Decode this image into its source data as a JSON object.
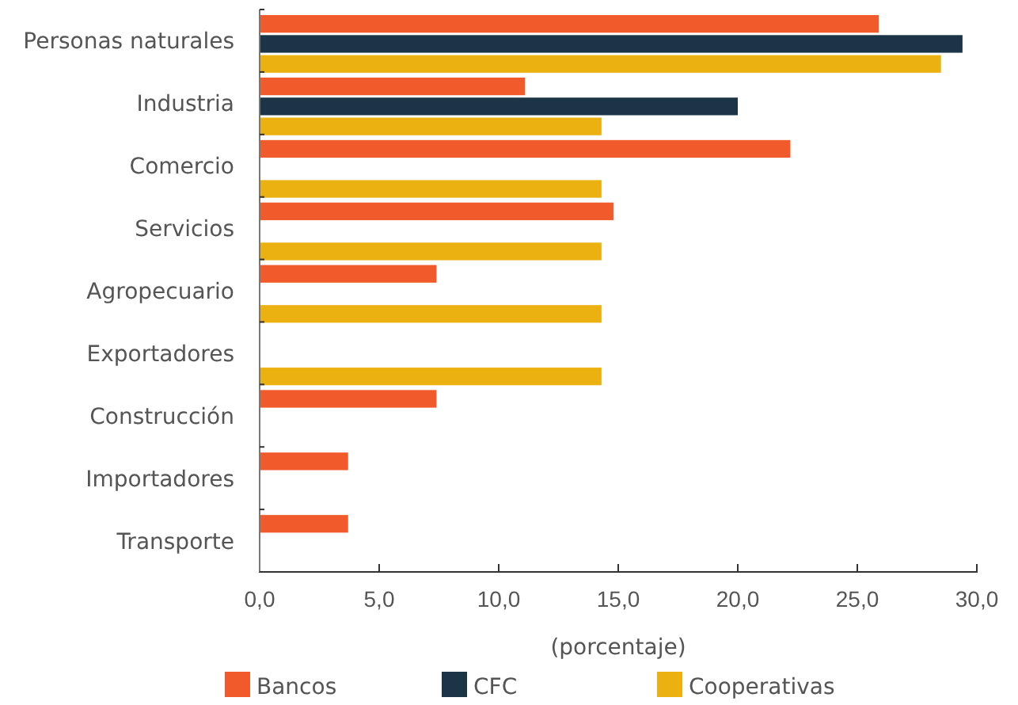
{
  "chart_data": {
    "type": "bar",
    "orientation": "horizontal",
    "xlabel": "(porcentaje)",
    "categories": [
      "Personas naturales",
      "Industria",
      "Comercio",
      "Servicios",
      "Agropecuario",
      "Exportadores",
      "Construcción",
      "Importadores",
      "Transporte"
    ],
    "series": [
      {
        "name": "Bancos",
        "color": "#f15a2b",
        "values": [
          25.9,
          11.1,
          22.2,
          14.8,
          7.4,
          null,
          7.4,
          3.7,
          3.7
        ]
      },
      {
        "name": "CFC",
        "color": "#1b3446",
        "values": [
          29.4,
          20.0,
          null,
          null,
          null,
          null,
          null,
          null,
          null
        ]
      },
      {
        "name": "Cooperativas",
        "color": "#eab111",
        "values": [
          28.5,
          14.3,
          14.3,
          14.3,
          14.3,
          14.3,
          null,
          null,
          null
        ]
      }
    ],
    "xlim": [
      0,
      30
    ],
    "xticks": [
      {
        "value": 0,
        "label": "0,0"
      },
      {
        "value": 5,
        "label": "5,0"
      },
      {
        "value": 10,
        "label": "10,0"
      },
      {
        "value": 15,
        "label": "15,0"
      },
      {
        "value": 20,
        "label": "20,0"
      },
      {
        "value": 25,
        "label": "25,0"
      },
      {
        "value": 30,
        "label": "30,0"
      }
    ],
    "grid": false,
    "legend": "bottom"
  }
}
